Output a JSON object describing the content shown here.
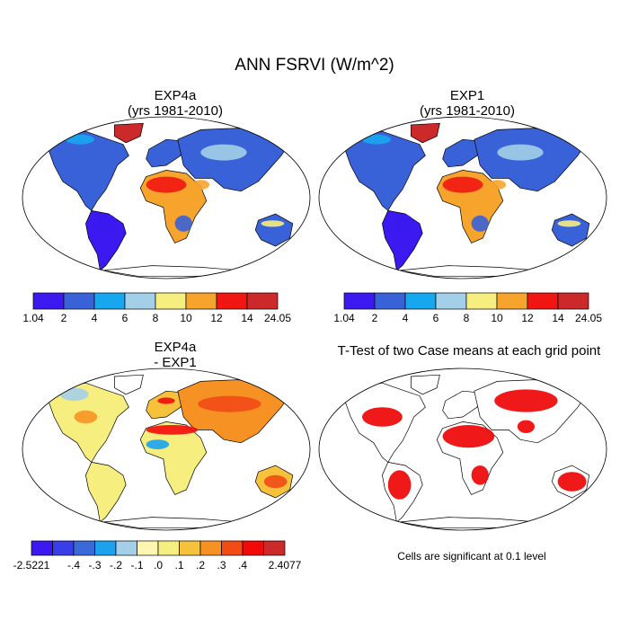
{
  "figure": {
    "title": "ANN FSRVI (W/m^2)"
  },
  "panels": {
    "exp4a": {
      "title_line1": "EXP4a",
      "title_line2": "(yrs 1981-2010)"
    },
    "exp1": {
      "title_line1": "EXP1",
      "title_line2": "(yrs 1981-2010)"
    },
    "diff": {
      "title_line1": "EXP4a",
      "title_line2": "- EXP1"
    },
    "ttest": {
      "title": "T-Test of two Case means at each grid point",
      "note": "Cells are significant at 0.1 level"
    }
  },
  "chart_data": [
    {
      "type": "heatmap",
      "title": "EXP4a (yrs 1981-2010)",
      "colorbar": {
        "tick_labels": [
          "1.04",
          "2",
          "4",
          "6",
          "8",
          "10",
          "12",
          "14",
          "24.05"
        ],
        "boundaries": [
          1.04,
          2,
          4,
          6,
          8,
          10,
          12,
          14,
          24.05
        ],
        "colors": [
          "#3b19f0",
          "#3a62d8",
          "#17a7ee",
          "#a3cfe8",
          "#f7ee80",
          "#f6a42c",
          "#f21612",
          "#cc2a2a"
        ]
      }
    },
    {
      "type": "heatmap",
      "title": "EXP1 (yrs 1981-2010)",
      "colorbar": {
        "tick_labels": [
          "1.04",
          "2",
          "4",
          "6",
          "8",
          "10",
          "12",
          "14",
          "24.05"
        ],
        "boundaries": [
          1.04,
          2,
          4,
          6,
          8,
          10,
          12,
          14,
          24.05
        ],
        "colors": [
          "#3b19f0",
          "#3a62d8",
          "#17a7ee",
          "#a3cfe8",
          "#f7ee80",
          "#f6a42c",
          "#f21612",
          "#cc2a2a"
        ]
      }
    },
    {
      "type": "heatmap",
      "title": "EXP4a - EXP1",
      "colorbar": {
        "tick_labels": [
          "-2.5221",
          "-.4",
          "-.3",
          "-.2",
          "-.1",
          ".0",
          ".1",
          ".2",
          ".3",
          ".4",
          "2.4077"
        ],
        "boundaries": [
          -2.5221,
          -0.5,
          -0.4,
          -0.3,
          -0.2,
          -0.1,
          0.0,
          0.1,
          0.2,
          0.3,
          0.4,
          0.5,
          2.4077
        ],
        "colors": [
          "#3b19f0",
          "#3a3ee6",
          "#3a6ad8",
          "#1aa2ee",
          "#a3cfe8",
          "#fdf6b0",
          "#f7ee80",
          "#f6c23c",
          "#f69224",
          "#f24b16",
          "#f20a0a",
          "#cc2a2a"
        ]
      }
    },
    {
      "type": "heatmap",
      "title": "T-Test of two Case means at each grid point",
      "colorbar": null,
      "significance_level": 0.1,
      "significant_color": "#ee0000"
    }
  ]
}
